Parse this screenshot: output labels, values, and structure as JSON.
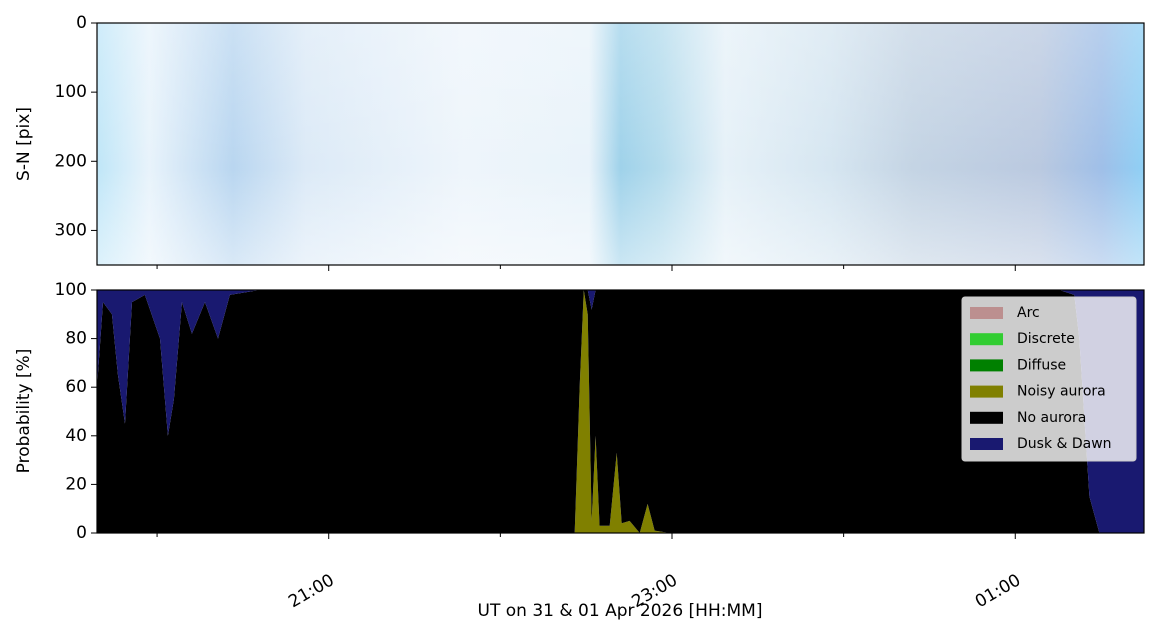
{
  "chart_data": [
    {
      "type": "image",
      "ylabel": "S-N [pix]",
      "ylim": [
        350,
        0
      ],
      "yticks": [
        0,
        100,
        200,
        300
      ],
      "xlim": [
        19.65,
        25.75
      ],
      "xticks": [
        21,
        23,
        25
      ],
      "xminorticks": [
        20,
        22,
        24
      ]
    },
    {
      "type": "stacked_area",
      "ylabel": "Probability [%]",
      "xlabel": "UT on 31 & 01 Apr 2026 [HH:MM]",
      "xlim": [
        19.65,
        25.75
      ],
      "xticks": [
        {
          "value": 21,
          "label": "21:00"
        },
        {
          "value": 23,
          "label": "23:00"
        },
        {
          "value": 25,
          "label": "01:00"
        }
      ],
      "xminorticks": [
        20,
        22,
        24
      ],
      "ylim": [
        0,
        100
      ],
      "yticks": [
        0,
        20,
        40,
        60,
        80,
        100
      ],
      "legend": "upper right",
      "x": [
        19.65,
        19.685,
        19.737,
        19.772,
        19.813,
        19.854,
        19.929,
        20.017,
        20.063,
        20.098,
        20.145,
        20.203,
        20.279,
        20.355,
        20.424,
        20.599,
        21.414,
        22.346,
        22.433,
        22.462,
        22.486,
        22.509,
        22.532,
        22.555,
        22.578,
        22.637,
        22.678,
        22.707,
        22.753,
        22.812,
        22.858,
        22.899,
        22.986,
        24.325,
        25.257,
        25.344,
        25.373,
        25.432,
        25.49,
        25.75
      ],
      "series": [
        {
          "name": "Arc",
          "color": "#bc8f8f",
          "values": [
            0,
            0,
            0,
            0,
            0,
            0,
            0,
            0,
            0,
            0,
            0,
            0,
            0,
            0,
            0,
            0,
            0,
            0,
            0,
            0,
            0,
            0,
            0,
            0,
            0,
            0,
            0,
            0,
            0,
            0,
            0,
            0,
            0,
            0,
            0,
            0,
            0,
            0,
            0,
            0
          ]
        },
        {
          "name": "Discrete",
          "color": "#32cd32",
          "values": [
            0,
            0,
            0,
            0,
            0,
            0,
            0,
            0,
            0,
            0,
            0,
            0,
            0,
            0,
            0,
            0,
            0,
            0,
            0,
            0,
            0,
            0,
            0,
            0,
            0,
            0,
            0,
            0,
            0,
            0,
            0,
            0,
            0,
            0,
            0,
            0,
            0,
            0,
            0,
            0
          ]
        },
        {
          "name": "Diffuse",
          "color": "#008000",
          "values": [
            0,
            0,
            0,
            0,
            0,
            0,
            0,
            0,
            0,
            0,
            0,
            0,
            0,
            0,
            0,
            0,
            0,
            0,
            0,
            0,
            0,
            0,
            0,
            0,
            0,
            0,
            0,
            0,
            0,
            0,
            0,
            0,
            0,
            0,
            0,
            0,
            0,
            0,
            0,
            0
          ]
        },
        {
          "name": "Noisy aurora",
          "color": "#808000",
          "values": [
            0,
            0,
            0,
            0,
            0,
            0,
            0,
            0,
            0,
            0,
            0,
            0,
            0,
            0,
            0,
            0,
            0,
            0,
            0,
            60,
            100,
            90,
            5,
            40,
            3,
            3,
            33,
            4,
            5,
            0,
            12,
            1,
            0,
            0,
            0,
            0,
            0,
            0,
            0,
            0
          ]
        },
        {
          "name": "No aurora",
          "color": "#000000",
          "values": [
            60,
            95,
            90,
            65,
            45,
            95,
            98,
            80,
            40,
            55,
            95,
            82,
            95,
            80,
            98,
            100,
            100,
            100,
            100,
            40,
            0,
            10,
            87,
            60,
            97,
            97,
            67,
            96,
            95,
            100,
            88,
            99,
            100,
            100,
            100,
            98,
            80,
            15,
            0,
            0
          ]
        },
        {
          "name": "Dusk & Dawn",
          "color": "#191970",
          "values": [
            40,
            5,
            10,
            35,
            55,
            5,
            2,
            20,
            60,
            45,
            5,
            18,
            5,
            20,
            2,
            0,
            0,
            0,
            0,
            0,
            0,
            0,
            8,
            0,
            0,
            0,
            0,
            0,
            0,
            0,
            0,
            0,
            0,
            0,
            0,
            2,
            20,
            85,
            100,
            100
          ]
        }
      ]
    }
  ]
}
